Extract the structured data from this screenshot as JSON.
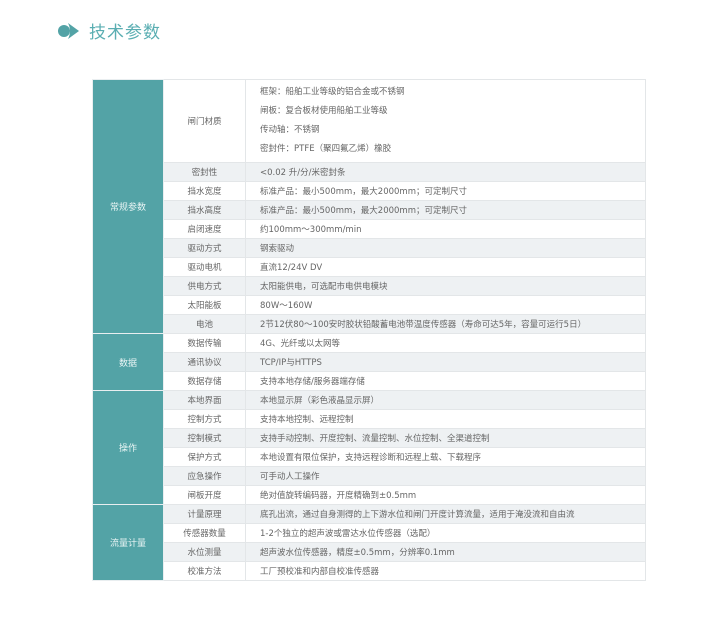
{
  "header": {
    "title": "技术参数",
    "icon": "arrow-bullet-icon",
    "accent": "#53a3a6"
  },
  "groups": [
    {
      "category": "常规参数",
      "rows": [
        {
          "label": "闸门材质",
          "values": [
            "框架：船舶工业等级的铝合金或不锈钢",
            "闸板：复合板材使用船舶工业等级",
            "传动轴：不锈钢",
            "密封件：PTFE（聚四氟乙烯）橡胶"
          ]
        },
        {
          "label": "密封性",
          "values": [
            "<0.02 升/分/米密封条"
          ]
        },
        {
          "label": "挡水宽度",
          "values": [
            "标准产品：最小500mm，最大2000mm；可定制尺寸"
          ]
        },
        {
          "label": "挡水高度",
          "values": [
            "标准产品：最小500mm，最大2000mm；可定制尺寸"
          ]
        },
        {
          "label": "启闭速度",
          "values": [
            "约100mm～300mm/min"
          ]
        },
        {
          "label": "驱动方式",
          "values": [
            "钢索驱动"
          ]
        },
        {
          "label": "驱动电机",
          "values": [
            "直流12/24V DV"
          ]
        },
        {
          "label": "供电方式",
          "values": [
            "太阳能供电，可选配市电供电模块"
          ]
        },
        {
          "label": "太阳能板",
          "values": [
            "80W～160W"
          ]
        },
        {
          "label": "电池",
          "values": [
            "2节12伏80～100安时胶状铅酸蓄电池带温度传感器（寿命可达5年，容量可运行5日）"
          ]
        }
      ]
    },
    {
      "category": "数据",
      "rows": [
        {
          "label": "数据传输",
          "values": [
            "4G、光纤或以太网等"
          ]
        },
        {
          "label": "通讯协议",
          "values": [
            "TCP/IP与HTTPS"
          ]
        },
        {
          "label": "数据存储",
          "values": [
            "支持本地存储/服务器端存储"
          ]
        }
      ]
    },
    {
      "category": "操作",
      "rows": [
        {
          "label": "本地界面",
          "values": [
            "本地显示屏（彩色液晶显示屏）"
          ]
        },
        {
          "label": "控制方式",
          "values": [
            "支持本地控制、远程控制"
          ]
        },
        {
          "label": "控制模式",
          "values": [
            "支持手动控制、开度控制、流量控制、水位控制、全渠道控制"
          ]
        },
        {
          "label": "保护方式",
          "values": [
            "本地设置有限位保护，支持远程诊断和远程上载、下载程序"
          ]
        },
        {
          "label": "应急操作",
          "values": [
            "可手动人工操作"
          ]
        },
        {
          "label": "闸板开度",
          "values": [
            "绝对值旋转编码器，开度精确到±0.5mm"
          ]
        }
      ]
    },
    {
      "category": "流量计量",
      "rows": [
        {
          "label": "计量原理",
          "values": [
            "底孔出流，通过自身测得的上下游水位和闸门开度计算流量，适用于淹没流和自由流"
          ]
        },
        {
          "label": "传感器数量",
          "values": [
            "1-2个独立的超声波或雷达水位传感器（选配）"
          ]
        },
        {
          "label": "水位测量",
          "values": [
            "超声波水位传感器，精度±0.5mm，分辨率0.1mm"
          ]
        },
        {
          "label": "校准方法",
          "values": [
            "工厂预校准和内部自校准传感器"
          ]
        }
      ]
    }
  ]
}
